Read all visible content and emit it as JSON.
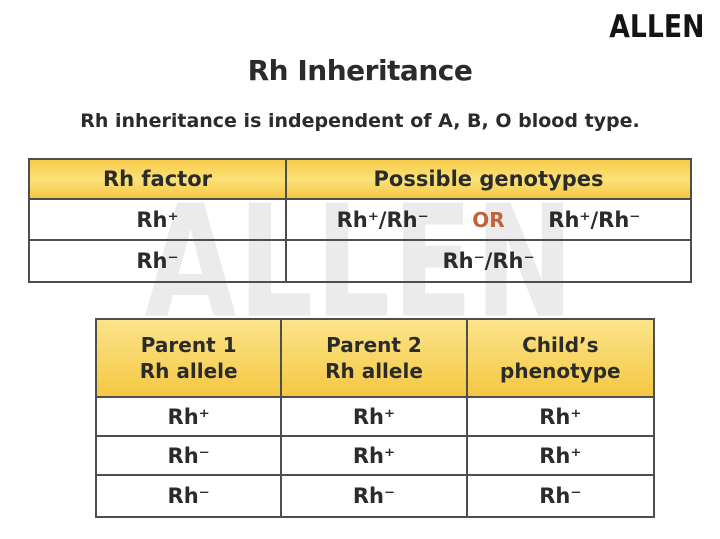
{
  "page": {
    "logo_text": "ALLEN",
    "watermark_text": "ALLEN",
    "title": "Rh Inheritance",
    "subtitle": "Rh inheritance is independent of A, B, O blood type."
  },
  "colors": {
    "background": "#ffffff",
    "text": "#2b2b2b",
    "table_border": "#4e4e4e",
    "header_yellow_top": "#f6cb49",
    "header_yellow_light": "#fbe178",
    "or_accent": "#c2613c",
    "watermark_gray": "#ebebeb",
    "logo_black": "#141414"
  },
  "genotype_table": {
    "headers": [
      "Rh factor",
      "Possible genotypes"
    ],
    "rows": [
      {
        "factor": "Rh⁺",
        "genotype_left": "Rh⁺/Rh⁻",
        "or_label": "OR",
        "genotype_right": "Rh⁺/Rh⁻"
      },
      {
        "factor": "Rh⁻",
        "genotype": "Rh⁻/Rh⁻"
      }
    ]
  },
  "allele_table": {
    "headers": [
      {
        "line1": "Parent 1",
        "line2": "Rh allele"
      },
      {
        "line1": "Parent 2",
        "line2": "Rh allele"
      },
      {
        "line1": "Child’s",
        "line2": "phenotype"
      }
    ],
    "rows": [
      [
        "Rh⁺",
        "Rh⁺",
        "Rh⁺"
      ],
      [
        "Rh⁻",
        "Rh⁺",
        "Rh⁺"
      ],
      [
        "Rh⁻",
        "Rh⁻",
        "Rh⁻"
      ]
    ]
  }
}
